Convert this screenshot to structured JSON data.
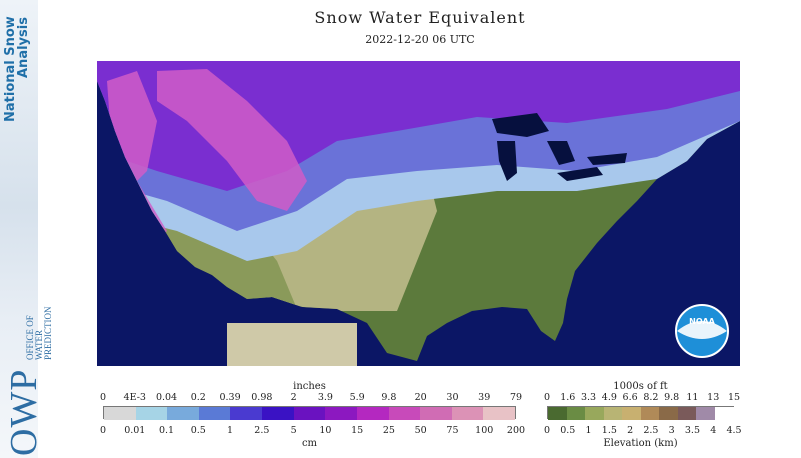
{
  "sidebar": {
    "title_line1": "National Snow",
    "title_line2": "Analysis",
    "logo_text": "OWP",
    "org_line1": "OFFICE OF",
    "org_line2": "WATER",
    "org_line3": "PREDICTION"
  },
  "map": {
    "title": "Snow Water Equivalent",
    "timestamp": "2022-12-20 06 UTC",
    "badge": "NOAA",
    "colors": {
      "ocean": "#0b1665",
      "lowland": "#5c7a3c",
      "plains": "#b4b482",
      "snow_light": "#a8c8ec",
      "snow_mid": "#6a72d8",
      "snow_heavy": "#7a2ed0",
      "snow_deep": "#d05cc8",
      "outside": "#cfc9a8",
      "lakes": "#06103e"
    }
  },
  "swe_legend": {
    "units_top": "inches",
    "units_bottom": "cm",
    "inch_labels": [
      "0",
      "4E-3",
      "0.04",
      "0.2",
      "0.39",
      "0.98",
      "2",
      "3.9",
      "5.9",
      "9.8",
      "20",
      "30",
      "39",
      "79"
    ],
    "cm_labels": [
      "0",
      "0.01",
      "0.1",
      "0.5",
      "1",
      "2.5",
      "5",
      "10",
      "15",
      "25",
      "50",
      "75",
      "100",
      "200"
    ],
    "colors": [
      "#d8d8d8",
      "#a6d4e6",
      "#78aadc",
      "#5a7ad6",
      "#4a3ad0",
      "#3a12c4",
      "#6a12c0",
      "#8c18c0",
      "#b428c0",
      "#c84aba",
      "#d06cb4",
      "#dc92b6",
      "#e8c2c6"
    ]
  },
  "elev_legend": {
    "units_top": "1000s of ft",
    "units_bottom": "Elevation (km)",
    "ft_labels": [
      "0",
      "1.6",
      "3.3",
      "4.9",
      "6.6",
      "8.2",
      "9.8",
      "11",
      "13",
      "15"
    ],
    "km_labels": [
      "0",
      "0.5",
      "1",
      "1.5",
      "2",
      "2.5",
      "3",
      "3.5",
      "4",
      "4.5"
    ],
    "colors": [
      "#4a6a30",
      "#6a8c44",
      "#98a85c",
      "#b8b474",
      "#c8b070",
      "#b08a58",
      "#8a6a48",
      "#7a5a5a",
      "#a08aa8",
      "#ffffff"
    ]
  }
}
